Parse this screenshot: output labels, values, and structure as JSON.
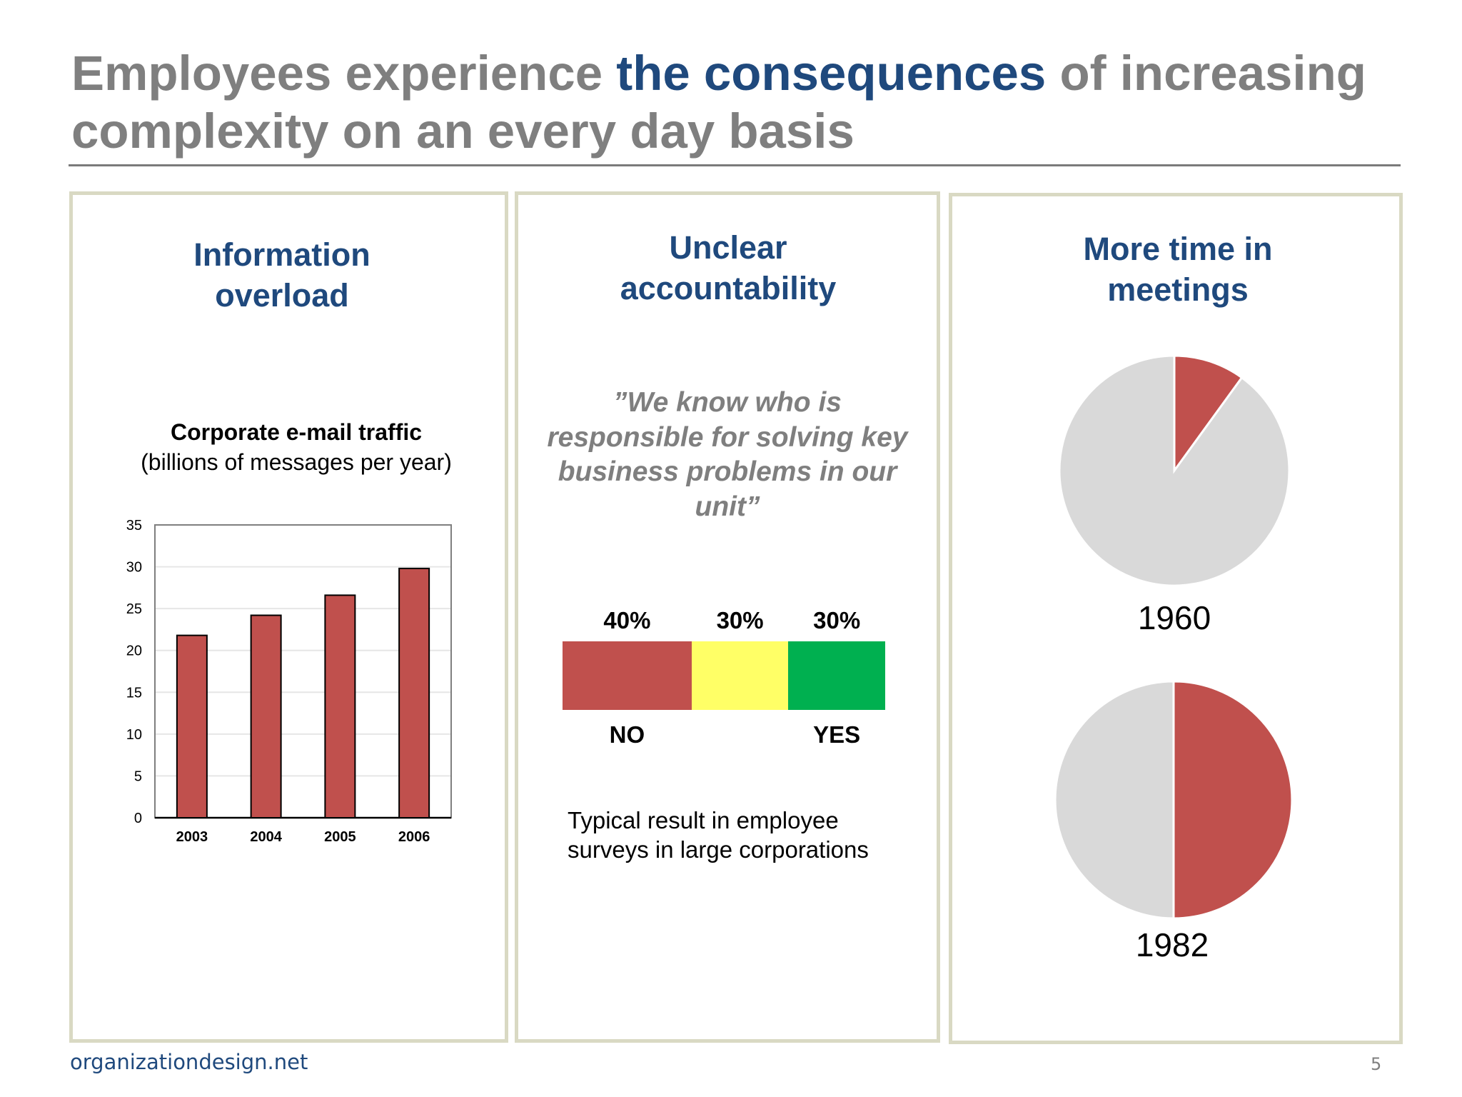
{
  "slide": {
    "title_part1": "Employees experience ",
    "title_highlight": "the consequences",
    "title_part2": " of increasing complexity on an every day basis",
    "footer_source": "organizationdesign.net",
    "page_number": "5"
  },
  "panels": {
    "info": {
      "heading_line1": "Information",
      "heading_line2": "overload",
      "chart_title": "Corporate e-mail traffic",
      "chart_subtitle": "(billions of messages per year)"
    },
    "accountability": {
      "heading_line1": "Unclear",
      "heading_line2": "accountability",
      "quote": "”We know who is responsible for solving key business problems in our unit”",
      "note": "Typical result in employee surveys in large corporations"
    },
    "meetings": {
      "heading_line1": "More time in",
      "heading_line2": "meetings"
    }
  },
  "chart_data": [
    {
      "type": "bar",
      "title": "Corporate e-mail traffic",
      "subtitle": "(billions of messages per year)",
      "categories": [
        "2003",
        "2004",
        "2005",
        "2006"
      ],
      "values": [
        21.8,
        24.2,
        26.6,
        29.8
      ],
      "ylim": [
        0,
        35
      ],
      "yticks": [
        "0",
        "5",
        "10",
        "15",
        "20",
        "25",
        "30",
        "35"
      ],
      "grid": true,
      "bar_color": "#c0504d"
    },
    {
      "type": "bar",
      "stacked": true,
      "orientation": "horizontal",
      "segments": [
        {
          "label": "40%",
          "value": 40,
          "category": "NO",
          "color": "#c0504d"
        },
        {
          "label": "30%",
          "value": 30,
          "category": "",
          "color": "#ffff66"
        },
        {
          "label": "30%",
          "value": 30,
          "category": "YES",
          "color": "#00b050"
        }
      ]
    },
    {
      "type": "pie",
      "label": "1960",
      "slices": [
        {
          "value": 10,
          "color": "#c0504d"
        },
        {
          "value": 90,
          "color": "#d9d9d9"
        }
      ]
    },
    {
      "type": "pie",
      "label": "1982",
      "slices": [
        {
          "value": 50,
          "color": "#c0504d"
        },
        {
          "value": 50,
          "color": "#d9d9d9"
        }
      ]
    }
  ]
}
